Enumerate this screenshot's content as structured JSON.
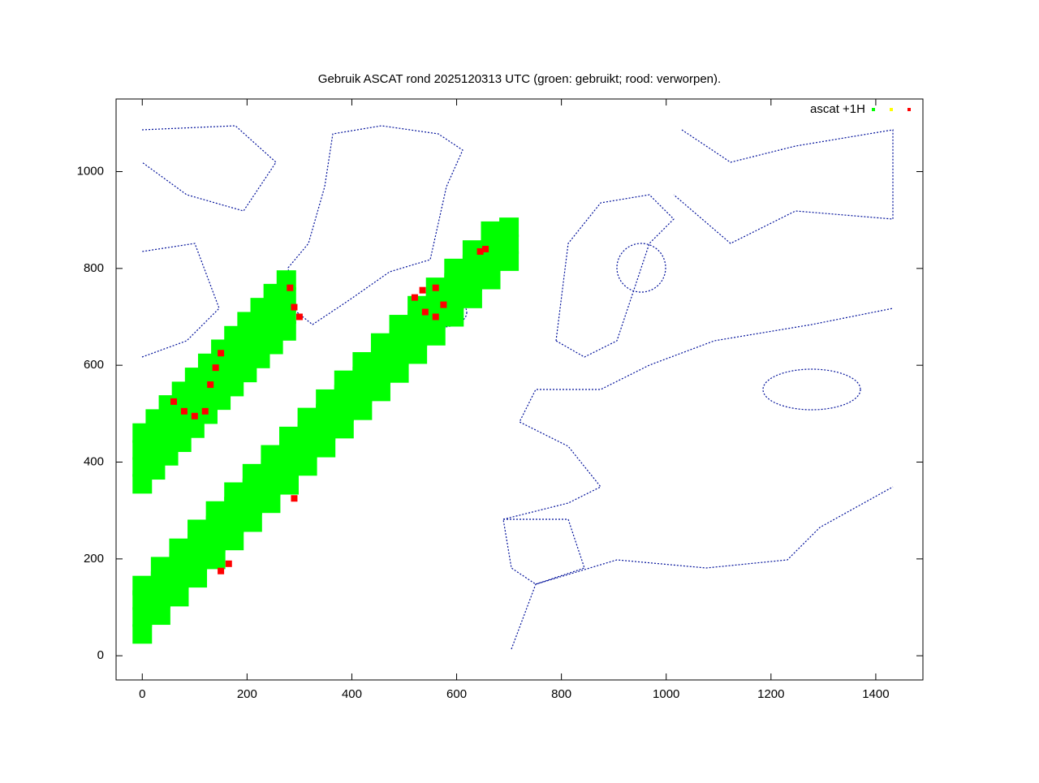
{
  "chart_data": {
    "type": "scatter",
    "title": "Gebruik ASCAT rond 2025120313 UTC (groen: gebruikt; rood: verworpen).",
    "xlim": [
      -50,
      1490
    ],
    "ylim": [
      -50,
      1150
    ],
    "xticks": [
      0,
      200,
      400,
      600,
      800,
      1000,
      1200,
      1400
    ],
    "yticks": [
      0,
      200,
      400,
      600,
      800,
      1000
    ],
    "legend": "top-right",
    "series": [
      {
        "name": "ascat +1H",
        "color": "#00ff00",
        "x": [
          0,
          25,
          50,
          75,
          100,
          125,
          150,
          175,
          200,
          225,
          250,
          275,
          0,
          25,
          50,
          75,
          100,
          125,
          150,
          175,
          200,
          225,
          250,
          275,
          0,
          25,
          50,
          75,
          100,
          125,
          150,
          175,
          200,
          225,
          250,
          275,
          0,
          25,
          50,
          75,
          100,
          125,
          150,
          175,
          200,
          225,
          250,
          275,
          0,
          35,
          70,
          105,
          140,
          175,
          210,
          245,
          280,
          315,
          350,
          385,
          420,
          455,
          490,
          525,
          560,
          595,
          630,
          665,
          700,
          0,
          35,
          70,
          105,
          140,
          175,
          210,
          245,
          280,
          315,
          350,
          385,
          420,
          455,
          490,
          525,
          560,
          595,
          630,
          665,
          700,
          0,
          35,
          70,
          105,
          140,
          175,
          210,
          245,
          280,
          315,
          350,
          385,
          420,
          455,
          490,
          525,
          560,
          595,
          630,
          665,
          700,
          0,
          35,
          70,
          105,
          140,
          175,
          210,
          245,
          280,
          315,
          350,
          385,
          420,
          455,
          490,
          525,
          560,
          595,
          630,
          665
        ],
        "values": [
          355,
          384,
          413,
          441,
          470,
          499,
          528,
          556,
          585,
          614,
          643,
          671,
          390,
          419,
          448,
          476,
          505,
          534,
          563,
          591,
          620,
          649,
          678,
          706,
          425,
          454,
          483,
          511,
          540,
          569,
          598,
          626,
          655,
          684,
          713,
          741,
          460,
          489,
          518,
          546,
          575,
          604,
          633,
          661,
          690,
          719,
          748,
          776,
          45,
          84,
          122,
          161,
          199,
          238,
          276,
          315,
          353,
          392,
          430,
          469,
          507,
          546,
          584,
          623,
          661,
          700,
          738,
          777,
          815,
          80,
          119,
          157,
          196,
          234,
          273,
          311,
          350,
          388,
          427,
          465,
          504,
          542,
          581,
          619,
          658,
          696,
          735,
          773,
          812,
          850,
          115,
          154,
          192,
          231,
          269,
          308,
          346,
          385,
          423,
          462,
          500,
          539,
          577,
          616,
          654,
          693,
          731,
          770,
          808,
          847,
          885,
          145,
          184,
          222,
          261,
          299,
          338,
          376,
          415,
          453,
          492,
          530,
          569,
          607,
          646,
          684,
          723,
          761,
          800,
          838,
          877
        ]
      },
      {
        "color": "#ffff00",
        "x": [],
        "values": []
      },
      {
        "color": "#ff0000",
        "x": [
          60,
          80,
          100,
          120,
          130,
          140,
          150,
          282,
          290,
          300,
          520,
          540,
          560,
          575,
          560,
          535,
          645,
          655,
          150,
          165,
          290
        ],
        "values": [
          525,
          505,
          495,
          505,
          560,
          595,
          625,
          760,
          720,
          700,
          740,
          710,
          700,
          725,
          760,
          755,
          835,
          840,
          175,
          190,
          325
        ]
      }
    ]
  }
}
